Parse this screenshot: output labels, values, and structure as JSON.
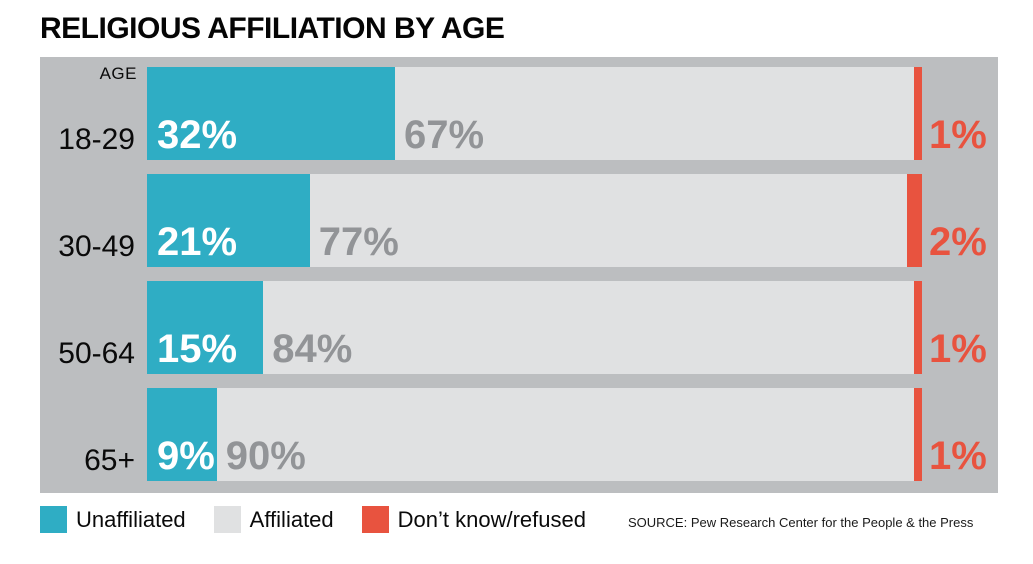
{
  "title": "RELIGIOUS AFFILIATION BY AGE",
  "source": "SOURCE: Pew Research Center for the People & the Press",
  "colors": {
    "chart_background": "#BCBEC0",
    "page_background": "#FFFFFF",
    "unaffiliated": "#2FADC4",
    "affiliated": "#E0E1E2",
    "dont_know": "#E8533F",
    "affiliated_label_text": "#929497",
    "unaffiliated_label_text": "#FFFFFF",
    "title_text": "#050505"
  },
  "chart_data": {
    "type": "bar",
    "orientation": "horizontal-stacked",
    "title": "RELIGIOUS AFFILIATION BY AGE",
    "axis_label": "AGE",
    "categories": [
      "18-29",
      "30-49",
      "50-64",
      "65+"
    ],
    "series": [
      {
        "name": "Unaffiliated",
        "color": "#2FADC4",
        "label_color": "#FFFFFF",
        "values": [
          32,
          21,
          15,
          9
        ]
      },
      {
        "name": "Affiliated",
        "color": "#E0E1E2",
        "label_color": "#929497",
        "values": [
          67,
          77,
          84,
          90
        ]
      },
      {
        "name": "Don’t know/refused",
        "color": "#E8533F",
        "label_color": "#E8533F",
        "values": [
          1,
          2,
          1,
          1
        ]
      }
    ],
    "value_suffix": "%",
    "xlim": [
      0,
      100
    ],
    "grid": false,
    "legend_position": "bottom"
  }
}
